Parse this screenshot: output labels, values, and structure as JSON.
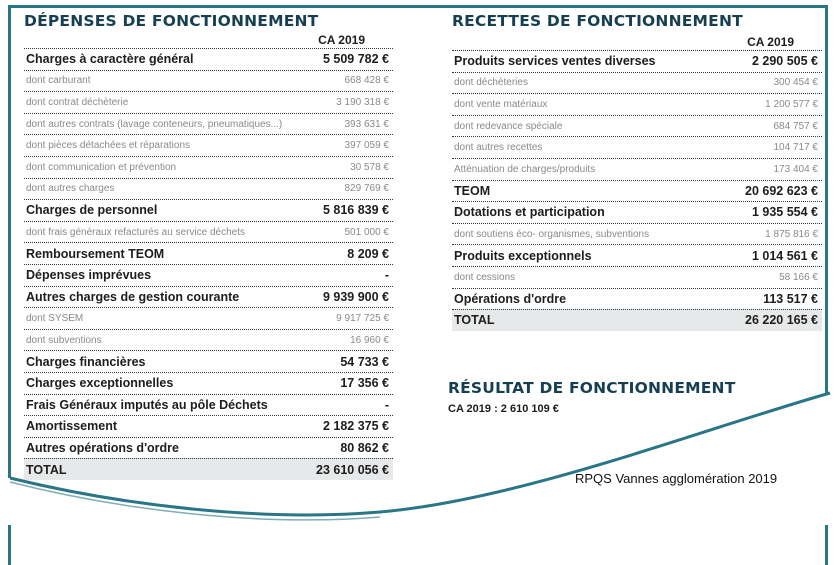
{
  "depenses": {
    "title": "DÉPENSES DE FONCTIONNEMENT",
    "column": "CA 2019",
    "rows": [
      {
        "label": "Charges à caractère général",
        "value": "5 509 782 €",
        "type": "main"
      },
      {
        "label": "dont carburant",
        "value": "668 428 €",
        "type": "sub"
      },
      {
        "label": "dont contrat déchèterie",
        "value": "3 190 318 €",
        "type": "sub"
      },
      {
        "label": "dont autres contrats (lavage conteneurs, pneumatiques...)",
        "value": "393 631 €",
        "type": "sub"
      },
      {
        "label": "dont pièces détachées et réparations",
        "value": "397 059 €",
        "type": "sub"
      },
      {
        "label": "dont communication et prévention",
        "value": "30 578 €",
        "type": "sub"
      },
      {
        "label": "dont autres charges",
        "value": "829 769 €",
        "type": "sub"
      },
      {
        "label": "Charges de personnel",
        "value": "5 816 839 €",
        "type": "main"
      },
      {
        "label": "dont frais généraux refacturés au service déchets",
        "value": "501 000 €",
        "type": "sub"
      },
      {
        "label": "Remboursement TEOM",
        "value": "8 209 €",
        "type": "main"
      },
      {
        "label": "Dépenses imprévues",
        "value": "-",
        "type": "main"
      },
      {
        "label": "Autres charges de gestion courante",
        "value": "9 939 900 €",
        "type": "main"
      },
      {
        "label": "dont SYSEM",
        "value": "9 917 725 €",
        "type": "sub"
      },
      {
        "label": "dont subventions",
        "value": "16 960 €",
        "type": "sub"
      },
      {
        "label": "Charges financières",
        "value": "54 733 €",
        "type": "main"
      },
      {
        "label": "Charges exceptionnelles",
        "value": "17 356 €",
        "type": "main"
      },
      {
        "label": "Frais Généraux imputés au pôle Déchets",
        "value": "-",
        "type": "main"
      },
      {
        "label": "Amortissement",
        "value": "2 182 375 €",
        "type": "main"
      },
      {
        "label": "Autres opérations d'ordre",
        "value": "80 862 €",
        "type": "main"
      },
      {
        "label": "TOTAL",
        "value": "23 610 056 €",
        "type": "total"
      }
    ]
  },
  "recettes": {
    "title": "RECETTES DE FONCTIONNEMENT",
    "column": "CA 2019",
    "rows": [
      {
        "label": "Produits services ventes diverses",
        "value": "2 290 505 €",
        "type": "main"
      },
      {
        "label": "dont déchèteries",
        "value": "300 454 €",
        "type": "sub"
      },
      {
        "label": "dont vente matériaux",
        "value": "1 200 577 €",
        "type": "sub"
      },
      {
        "label": "dont redevance spéciale",
        "value": "684 757 €",
        "type": "sub"
      },
      {
        "label": "dont autres recettes",
        "value": "104 717 €",
        "type": "sub"
      },
      {
        "label": "Atténuation de charges/produits",
        "value": "173 404 €",
        "type": "sub"
      },
      {
        "label": "TEOM",
        "value": "20 692 623 €",
        "type": "main"
      },
      {
        "label": "Dotations et participation",
        "value": "1 935 554 €",
        "type": "main"
      },
      {
        "label": "dont soutiens éco- organismes, subventions",
        "value": "1 875 816 €",
        "type": "sub"
      },
      {
        "label": "Produits exceptionnels",
        "value": "1 014 561 €",
        "type": "main"
      },
      {
        "label": "dont cessions",
        "value": "58 166 €",
        "type": "sub"
      },
      {
        "label": "Opérations d'ordre",
        "value": "113 517 €",
        "type": "main"
      },
      {
        "label": "TOTAL",
        "value": "26 220 165 €",
        "type": "total"
      }
    ]
  },
  "resultat": {
    "title": "RÉSULTAT DE FONCTIONNEMENT",
    "value": "CA 2019 : 2 610 109 €"
  },
  "footer": "RPQS Vannes agglomération 2019",
  "colors": {
    "frame": "#2a7686",
    "title": "#163f52",
    "total_bg": "#e6e8ea"
  }
}
